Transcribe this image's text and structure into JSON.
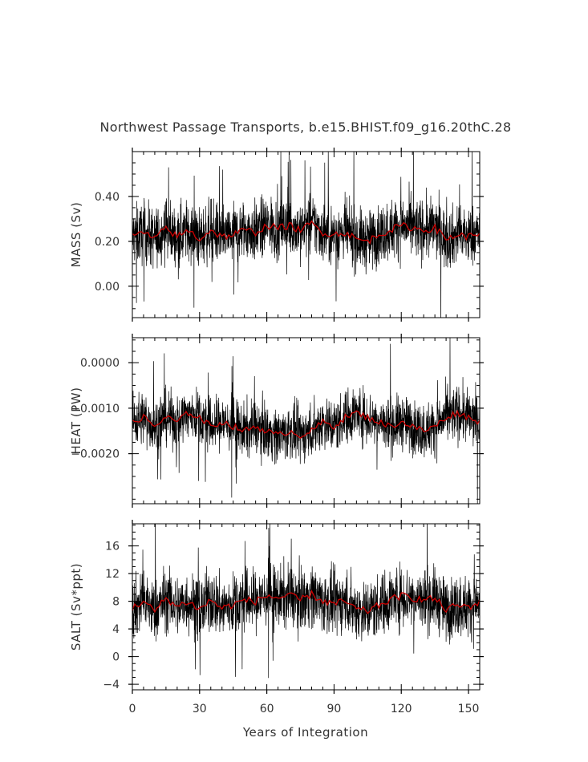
{
  "title": "Northwest Passage Transports, b.e15.BHIST.f09_g16.20thC.28",
  "xlabel": "Years of Integration",
  "chart_data": [
    {
      "type": "line",
      "ylabel": "MASS (Sv)",
      "xlim": [
        0,
        155
      ],
      "ylim": [
        -0.14,
        0.6
      ],
      "xticks": [
        "0",
        "30",
        "60",
        "90",
        "120",
        "150"
      ],
      "yticks": [
        "0.00",
        "0.20",
        "0.40"
      ],
      "ytick_values": [
        0.0,
        0.2,
        0.4
      ],
      "series": [
        {
          "role": "monthly",
          "color": "#000000",
          "baseline": 0.22,
          "amplitude": 0.09,
          "values_sample": [
            0.22,
            0.35,
            0.1,
            0.28,
            0.18,
            0.31,
            0.15
          ]
        },
        {
          "role": "annual-mean",
          "color": "#cc0000",
          "x": [
            0,
            5,
            10,
            15,
            20,
            25,
            30,
            35,
            40,
            45,
            50,
            55,
            60,
            65,
            70,
            75,
            80,
            85,
            90,
            95,
            100,
            105,
            110,
            115,
            120,
            125,
            130,
            135,
            140,
            145,
            150,
            155
          ],
          "values": [
            0.22,
            0.24,
            0.21,
            0.26,
            0.22,
            0.25,
            0.21,
            0.25,
            0.22,
            0.23,
            0.25,
            0.24,
            0.27,
            0.26,
            0.27,
            0.25,
            0.28,
            0.24,
            0.23,
            0.24,
            0.21,
            0.2,
            0.23,
            0.25,
            0.27,
            0.26,
            0.25,
            0.26,
            0.21,
            0.23,
            0.22,
            0.24
          ]
        }
      ]
    },
    {
      "type": "line",
      "ylabel": "HEAT (PW)",
      "xlim": [
        0,
        155
      ],
      "ylim": [
        -0.0031,
        0.00055
      ],
      "xticks": [
        "0",
        "30",
        "60",
        "90",
        "120",
        "150"
      ],
      "yticks": [
        "0.0000",
        "−0.0010",
        "−0.0020"
      ],
      "ytick_values": [
        0.0,
        -0.001,
        -0.002
      ],
      "series": [
        {
          "role": "monthly",
          "color": "#000000",
          "baseline": -0.0014,
          "amplitude": 0.0004,
          "values_sample": [
            -0.0012,
            -0.0018,
            -0.0009,
            -0.0015
          ]
        },
        {
          "role": "annual-mean",
          "color": "#cc0000",
          "x": [
            0,
            5,
            10,
            15,
            20,
            25,
            30,
            35,
            40,
            45,
            50,
            55,
            60,
            65,
            70,
            75,
            80,
            85,
            90,
            95,
            100,
            105,
            110,
            115,
            120,
            125,
            130,
            135,
            140,
            145,
            150,
            155
          ],
          "values": [
            -0.0013,
            -0.0012,
            -0.0014,
            -0.0012,
            -0.0013,
            -0.0011,
            -0.0012,
            -0.0014,
            -0.0013,
            -0.0014,
            -0.0015,
            -0.0014,
            -0.0015,
            -0.0016,
            -0.0015,
            -0.0016,
            -0.0015,
            -0.0013,
            -0.0014,
            -0.0012,
            -0.0011,
            -0.0012,
            -0.0013,
            -0.0014,
            -0.0013,
            -0.0014,
            -0.0015,
            -0.0014,
            -0.0012,
            -0.0011,
            -0.0012,
            -0.0013
          ]
        }
      ]
    },
    {
      "type": "line",
      "ylabel": "SALT (Sv*ppt)",
      "xlim": [
        0,
        155
      ],
      "ylim": [
        -4.8,
        19.2
      ],
      "xticks": [
        "0",
        "30",
        "60",
        "90",
        "120",
        "150"
      ],
      "yticks": [
        "−4",
        "0",
        "4",
        "8",
        "12",
        "16"
      ],
      "ytick_values": [
        -4,
        0,
        4,
        8,
        12,
        16
      ],
      "series": [
        {
          "role": "monthly",
          "color": "#000000",
          "baseline": 7.8,
          "amplitude": 3.0,
          "values_sample": [
            7.5,
            11.0,
            4.0,
            9.5,
            6.0
          ]
        },
        {
          "role": "annual-mean",
          "color": "#cc0000",
          "x": [
            0,
            5,
            10,
            15,
            20,
            25,
            30,
            35,
            40,
            45,
            50,
            55,
            60,
            65,
            70,
            75,
            80,
            85,
            90,
            95,
            100,
            105,
            110,
            115,
            120,
            125,
            130,
            135,
            140,
            145,
            150,
            155
          ],
          "values": [
            7.0,
            8.0,
            6.5,
            8.5,
            7.2,
            8.0,
            6.8,
            8.2,
            7.0,
            7.5,
            8.2,
            8.0,
            8.8,
            8.5,
            8.8,
            8.2,
            9.0,
            8.0,
            7.6,
            8.0,
            6.8,
            6.6,
            7.4,
            8.2,
            8.8,
            8.5,
            8.2,
            8.4,
            6.8,
            7.4,
            7.2,
            7.8
          ]
        }
      ]
    }
  ]
}
